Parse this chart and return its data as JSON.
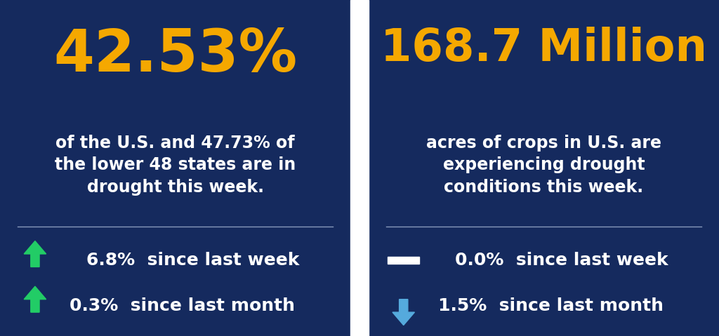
{
  "bg_color": "#152a5e",
  "divider_color": "#8899bb",
  "white_color": "#ffffff",
  "orange_color": "#f5a800",
  "green_color": "#22cc66",
  "blue_arrow_color": "#55aadd",
  "left_big_text": "42.53%",
  "left_sub_text": "of the U.S. and 47.73% of\nthe lower 48 states are in\ndrought this week.",
  "left_stat1_text": "6.8%  since last week",
  "left_stat2_text": "0.3%  since last month",
  "right_big_text": "168.7 Million",
  "right_sub_text": "acres of crops in U.S. are\nexperiencing drought\nconditions this week.",
  "right_stat1_text": "0.0%  since last week",
  "right_stat2_text": "1.5%  since last month",
  "fig_width": 10.24,
  "fig_height": 4.79,
  "dpi": 100
}
